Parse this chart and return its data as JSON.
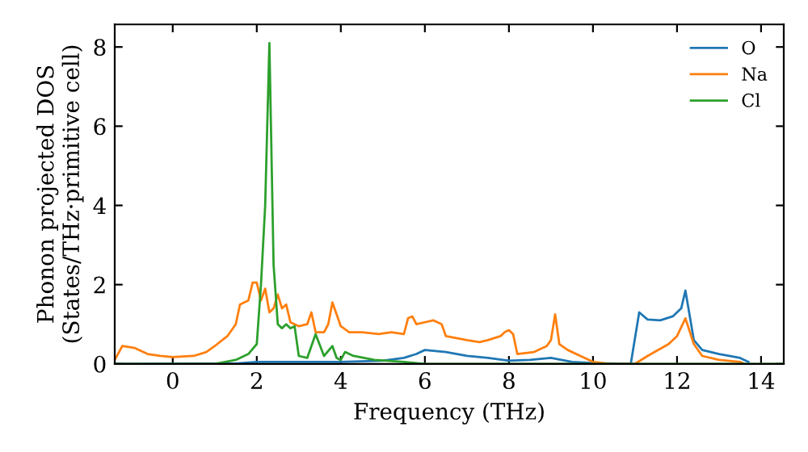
{
  "chart_data": {
    "type": "line",
    "xlabel": "Frequency (THz)",
    "ylabel": "Phonon projected DOS\n(States/THz·primitive cell)",
    "xlim": [
      -1.38,
      14.54
    ],
    "ylim": [
      0,
      8.57
    ],
    "xticks": [
      0,
      2,
      4,
      6,
      8,
      10,
      12,
      14
    ],
    "yticks": [
      0,
      2,
      4,
      6,
      8
    ],
    "grid": false,
    "legend": "top right",
    "marker": "none",
    "line_style": "solid",
    "series": [
      {
        "name": "O",
        "color": "#1f77b4",
        "x": [
          -1.38,
          1.5,
          2.0,
          3.0,
          4.0,
          5.0,
          5.5,
          5.8,
          6.0,
          6.5,
          7.0,
          7.5,
          8.0,
          8.5,
          9.0,
          9.5,
          10.0,
          10.9,
          11.1,
          11.3,
          11.6,
          11.9,
          12.1,
          12.2,
          12.4,
          12.6,
          13.0,
          13.5,
          13.7
        ],
        "values": [
          0,
          0.01,
          0.05,
          0.05,
          0.05,
          0.08,
          0.15,
          0.25,
          0.35,
          0.3,
          0.2,
          0.15,
          0.08,
          0.1,
          0.15,
          0.05,
          0.02,
          0,
          1.3,
          1.12,
          1.1,
          1.2,
          1.4,
          1.85,
          0.6,
          0.35,
          0.25,
          0.15,
          0.05
        ]
      },
      {
        "name": "Na",
        "color": "#ff7f0e",
        "x": [
          -1.38,
          -1.2,
          -0.9,
          -0.6,
          -0.3,
          0,
          0.5,
          0.8,
          1.0,
          1.3,
          1.5,
          1.6,
          1.8,
          1.9,
          2.0,
          2.1,
          2.2,
          2.3,
          2.4,
          2.5,
          2.6,
          2.7,
          2.8,
          3.0,
          3.2,
          3.3,
          3.4,
          3.6,
          3.7,
          3.8,
          4.0,
          4.2,
          4.5,
          4.9,
          5.2,
          5.5,
          5.6,
          5.7,
          5.8,
          6.0,
          6.2,
          6.4,
          6.5,
          7.0,
          7.3,
          7.5,
          7.8,
          7.9,
          8.0,
          8.1,
          8.2,
          8.6,
          8.9,
          9.0,
          9.1,
          9.2,
          9.4,
          9.7,
          10.0,
          10.4,
          11.0,
          11.3,
          11.8,
          12.0,
          12.2,
          12.4,
          12.6,
          13.0,
          13.5,
          13.6
        ],
        "values": [
          0.1,
          0.45,
          0.4,
          0.25,
          0.2,
          0.17,
          0.2,
          0.3,
          0.45,
          0.7,
          1.0,
          1.5,
          1.6,
          2.05,
          2.05,
          1.6,
          1.9,
          1.3,
          1.4,
          1.75,
          1.4,
          1.5,
          1.05,
          0.95,
          1.0,
          1.3,
          0.8,
          0.8,
          1.0,
          1.55,
          0.95,
          0.8,
          0.8,
          0.75,
          0.8,
          0.75,
          1.15,
          1.2,
          1.0,
          1.05,
          1.1,
          1.0,
          0.7,
          0.6,
          0.55,
          0.6,
          0.7,
          0.8,
          0.85,
          0.75,
          0.25,
          0.3,
          0.45,
          0.6,
          1.25,
          0.5,
          0.35,
          0.2,
          0.05,
          0,
          0,
          0.2,
          0.5,
          0.7,
          1.15,
          0.5,
          0.2,
          0.1,
          0.05,
          0
        ]
      },
      {
        "name": "Cl",
        "color": "#2ca02c",
        "x": [
          -1.38,
          1.0,
          1.5,
          1.8,
          2.0,
          2.1,
          2.2,
          2.3,
          2.4,
          2.5,
          2.6,
          2.7,
          2.8,
          2.9,
          3.0,
          3.2,
          3.4,
          3.6,
          3.8,
          3.9,
          4.0,
          4.1,
          4.3,
          4.8,
          5.5,
          6.0,
          14.54
        ],
        "values": [
          0,
          0,
          0.1,
          0.25,
          0.5,
          2.0,
          4.0,
          8.1,
          2.5,
          1.0,
          0.9,
          1.0,
          0.9,
          0.95,
          0.2,
          0.15,
          0.75,
          0.2,
          0.45,
          0.15,
          0.1,
          0.3,
          0.2,
          0.1,
          0.05,
          0,
          0
        ]
      }
    ]
  }
}
